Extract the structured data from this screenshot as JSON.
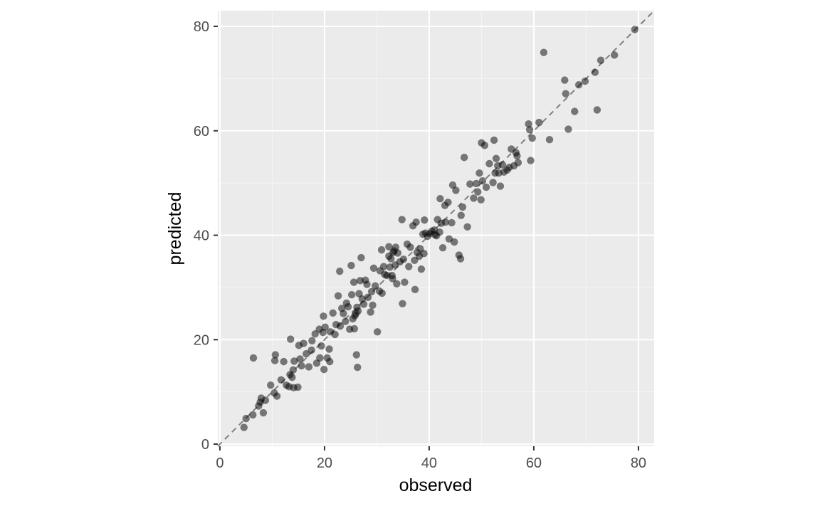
{
  "colors": {
    "panel_background": "#ebebeb",
    "grid_major": "#ffffff",
    "grid_minor": "#f5f5f5",
    "point": "#000000",
    "reference_line": "#808080",
    "tick_mark": "#333333"
  },
  "chart_data": {
    "type": "scatter",
    "title": "",
    "xlabel": "observed",
    "ylabel": "predicted",
    "xlim": [
      -0.4,
      83.0
    ],
    "ylim": [
      -0.4,
      83.0
    ],
    "x_ticks": [
      0,
      20,
      40,
      60,
      80
    ],
    "y_ticks": [
      0,
      20,
      40,
      60,
      80
    ],
    "x_tick_labels": [
      "0",
      "20",
      "40",
      "60",
      "80"
    ],
    "y_tick_labels": [
      "0",
      "20",
      "40",
      "60",
      "80"
    ],
    "grid": true,
    "aspect": "equal",
    "point_opacity": 0.5,
    "reference_line": {
      "intercept": 0,
      "slope": 1,
      "style": "dashed"
    },
    "points": [
      [
        4.6,
        3.2
      ],
      [
        5.0,
        4.9
      ],
      [
        6.3,
        5.6
      ],
      [
        6.4,
        16.5
      ],
      [
        7.4,
        7.3
      ],
      [
        7.7,
        8.0
      ],
      [
        7.9,
        8.8
      ],
      [
        8.3,
        6.0
      ],
      [
        8.7,
        8.4
      ],
      [
        9.7,
        11.3
      ],
      [
        10.4,
        9.8
      ],
      [
        10.5,
        16.0
      ],
      [
        10.6,
        17.1
      ],
      [
        10.9,
        9.2
      ],
      [
        11.7,
        12.3
      ],
      [
        12.2,
        15.8
      ],
      [
        12.7,
        11.3
      ],
      [
        13.2,
        11.0
      ],
      [
        13.4,
        13.3
      ],
      [
        13.5,
        20.1
      ],
      [
        13.8,
        12.8
      ],
      [
        14.0,
        14.2
      ],
      [
        14.1,
        10.8
      ],
      [
        14.2,
        15.9
      ],
      [
        14.9,
        10.9
      ],
      [
        15.1,
        18.9
      ],
      [
        15.3,
        16.3
      ],
      [
        15.6,
        15.0
      ],
      [
        16.0,
        19.3
      ],
      [
        16.5,
        17.3
      ],
      [
        17.0,
        14.8
      ],
      [
        17.5,
        18.0
      ],
      [
        17.6,
        19.8
      ],
      [
        18.2,
        21.1
      ],
      [
        18.5,
        15.5
      ],
      [
        19.0,
        22.0
      ],
      [
        19.1,
        16.5
      ],
      [
        19.4,
        18.8
      ],
      [
        19.7,
        21.4
      ],
      [
        19.8,
        24.5
      ],
      [
        19.9,
        14.3
      ],
      [
        20.1,
        22.4
      ],
      [
        20.5,
        16.5
      ],
      [
        20.9,
        18.2
      ],
      [
        21.0,
        15.8
      ],
      [
        21.1,
        21.5
      ],
      [
        21.6,
        25.1
      ],
      [
        22.0,
        21.0
      ],
      [
        22.2,
        22.9
      ],
      [
        22.6,
        28.4
      ],
      [
        22.9,
        33.1
      ],
      [
        23.0,
        22.6
      ],
      [
        23.3,
        26.0
      ],
      [
        23.6,
        25.0
      ],
      [
        24.0,
        23.5
      ],
      [
        24.2,
        27.0
      ],
      [
        24.5,
        26.3
      ],
      [
        24.8,
        22.0
      ],
      [
        25.1,
        34.2
      ],
      [
        25.2,
        28.6
      ],
      [
        25.4,
        24.0
      ],
      [
        25.6,
        31.0
      ],
      [
        25.7,
        22.1
      ],
      [
        25.8,
        24.6
      ],
      [
        26.0,
        25.0
      ],
      [
        26.1,
        17.1
      ],
      [
        26.2,
        26.2
      ],
      [
        26.3,
        14.7
      ],
      [
        26.4,
        25.5
      ],
      [
        26.6,
        28.8
      ],
      [
        26.8,
        31.3
      ],
      [
        27.0,
        35.7
      ],
      [
        27.2,
        27.8
      ],
      [
        27.5,
        26.8
      ],
      [
        27.8,
        31.4
      ],
      [
        28.1,
        30.6
      ],
      [
        28.3,
        28.1
      ],
      [
        28.8,
        25.3
      ],
      [
        29.0,
        29.2
      ],
      [
        29.2,
        26.6
      ],
      [
        29.4,
        33.7
      ],
      [
        29.7,
        30.3
      ],
      [
        30.1,
        21.5
      ],
      [
        30.5,
        29.3
      ],
      [
        30.6,
        33.2
      ],
      [
        30.9,
        37.2
      ],
      [
        31.0,
        28.9
      ],
      [
        31.3,
        34.0
      ],
      [
        31.5,
        32.5
      ],
      [
        31.9,
        32.3
      ],
      [
        32.3,
        36.0
      ],
      [
        32.3,
        37.8
      ],
      [
        32.5,
        33.9
      ],
      [
        32.7,
        35.5
      ],
      [
        32.9,
        32.3
      ],
      [
        33.0,
        31.7
      ],
      [
        33.1,
        36.7
      ],
      [
        33.3,
        37.0
      ],
      [
        33.5,
        34.3
      ],
      [
        33.6,
        37.7
      ],
      [
        33.8,
        30.7
      ],
      [
        34.0,
        36.6
      ],
      [
        34.4,
        34.9
      ],
      [
        34.8,
        43.0
      ],
      [
        34.9,
        26.9
      ],
      [
        35.1,
        35.4
      ],
      [
        35.3,
        31.0
      ],
      [
        35.8,
        38.3
      ],
      [
        36.1,
        34.0
      ],
      [
        36.4,
        37.7
      ],
      [
        36.9,
        41.8
      ],
      [
        37.2,
        35.2
      ],
      [
        37.3,
        29.6
      ],
      [
        37.5,
        42.5
      ],
      [
        37.7,
        36.7
      ],
      [
        38.1,
        36.0
      ],
      [
        38.3,
        37.4
      ],
      [
        38.5,
        33.5
      ],
      [
        38.8,
        40.2
      ],
      [
        39.0,
        36.5
      ],
      [
        39.1,
        42.9
      ],
      [
        39.3,
        40.4
      ],
      [
        39.7,
        39.8
      ],
      [
        40.1,
        40.3
      ],
      [
        40.5,
        40.8
      ],
      [
        41.0,
        41.0
      ],
      [
        41.1,
        40.1
      ],
      [
        41.4,
        39.9
      ],
      [
        41.6,
        43.0
      ],
      [
        42.0,
        40.6
      ],
      [
        42.1,
        47.0
      ],
      [
        42.3,
        42.3
      ],
      [
        42.6,
        37.6
      ],
      [
        43.0,
        45.7
      ],
      [
        43.1,
        42.5
      ],
      [
        43.6,
        46.3
      ],
      [
        43.8,
        39.3
      ],
      [
        44.3,
        42.4
      ],
      [
        44.5,
        49.6
      ],
      [
        44.8,
        38.7
      ],
      [
        45.1,
        48.6
      ],
      [
        45.7,
        36.2
      ],
      [
        46.0,
        35.5
      ],
      [
        46.1,
        43.8
      ],
      [
        46.4,
        45.4
      ],
      [
        46.7,
        54.9
      ],
      [
        47.3,
        41.6
      ],
      [
        47.8,
        49.8
      ],
      [
        48.5,
        47.1
      ],
      [
        49.0,
        49.9
      ],
      [
        49.3,
        48.3
      ],
      [
        49.6,
        51.9
      ],
      [
        49.9,
        46.8
      ],
      [
        50.0,
        57.7
      ],
      [
        50.2,
        50.4
      ],
      [
        50.6,
        57.2
      ],
      [
        50.9,
        49.2
      ],
      [
        51.5,
        53.7
      ],
      [
        52.2,
        50.1
      ],
      [
        52.4,
        58.2
      ],
      [
        52.6,
        51.9
      ],
      [
        52.8,
        54.7
      ],
      [
        53.1,
        53.3
      ],
      [
        53.3,
        51.9
      ],
      [
        53.6,
        49.4
      ],
      [
        54.0,
        53.5
      ],
      [
        54.3,
        52.1
      ],
      [
        54.9,
        52.5
      ],
      [
        55.3,
        53.0
      ],
      [
        55.7,
        56.5
      ],
      [
        56.2,
        53.3
      ],
      [
        56.6,
        55.8
      ],
      [
        56.8,
        55.2
      ],
      [
        57.0,
        53.9
      ],
      [
        59.0,
        61.3
      ],
      [
        59.2,
        60.2
      ],
      [
        59.4,
        54.3
      ],
      [
        59.7,
        58.6
      ],
      [
        61.0,
        61.6
      ],
      [
        61.9,
        75.0
      ],
      [
        63.0,
        58.3
      ],
      [
        65.9,
        69.7
      ],
      [
        66.1,
        67.1
      ],
      [
        66.6,
        60.3
      ],
      [
        67.8,
        63.7
      ],
      [
        68.6,
        68.8
      ],
      [
        69.8,
        69.5
      ],
      [
        71.7,
        71.2
      ],
      [
        72.1,
        64.0
      ],
      [
        72.8,
        73.5
      ],
      [
        75.4,
        74.5
      ],
      [
        79.3,
        79.4
      ]
    ]
  }
}
